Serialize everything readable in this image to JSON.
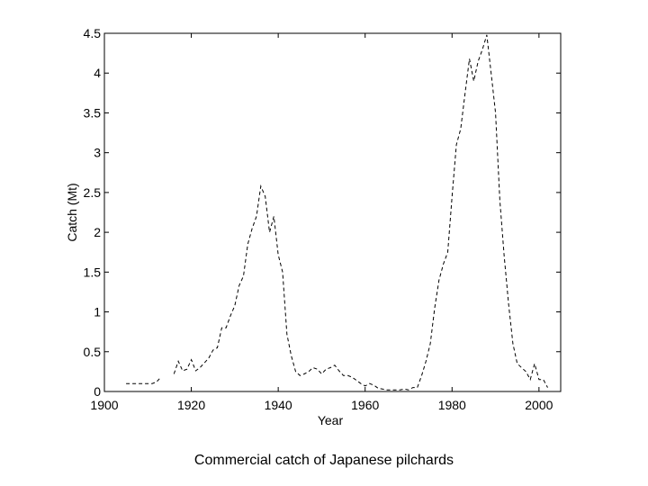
{
  "caption": "Commercial catch of Japanese pilchards",
  "chart_data": {
    "type": "line",
    "title": "",
    "xlabel": "Year",
    "ylabel": "Catch (Mt)",
    "xlim": [
      1900,
      2005
    ],
    "ylim": [
      0,
      4.5
    ],
    "xticks": [
      1900,
      1920,
      1940,
      1960,
      1980,
      2000
    ],
    "yticks": [
      0,
      0.5,
      1,
      1.5,
      2,
      2.5,
      3,
      3.5,
      4,
      4.5
    ],
    "ytick_labels": [
      "0",
      "0.5",
      "1",
      "1.5",
      "2",
      "2.5",
      "3",
      "3.5",
      "4",
      "4.5"
    ],
    "grid": false,
    "line_style": "dashed",
    "line_color": "#000000",
    "series": [
      {
        "name": "",
        "x": [
          1905,
          1906,
          1907,
          1908,
          1909,
          1910,
          1911,
          1912,
          1913,
          1914,
          1915,
          1916,
          1917,
          1918,
          1919,
          1920,
          1921,
          1922,
          1923,
          1924,
          1925,
          1926,
          1927,
          1928,
          1929,
          1930,
          1931,
          1932,
          1933,
          1934,
          1935,
          1936,
          1937,
          1938,
          1939,
          1940,
          1941,
          1942,
          1943,
          1944,
          1945,
          1946,
          1947,
          1948,
          1949,
          1950,
          1951,
          1952,
          1953,
          1954,
          1955,
          1956,
          1957,
          1958,
          1959,
          1960,
          1961,
          1962,
          1963,
          1964,
          1965,
          1966,
          1967,
          1968,
          1969,
          1970,
          1971,
          1972,
          1973,
          1974,
          1975,
          1976,
          1977,
          1978,
          1979,
          1980,
          1981,
          1982,
          1983,
          1984,
          1985,
          1986,
          1987,
          1988,
          1989,
          1990,
          1991,
          1992,
          1993,
          1994,
          1995,
          1996,
          1997,
          1998,
          1999,
          2000,
          2001,
          2002
        ],
        "y": [
          0.1,
          0.1,
          0.1,
          0.1,
          0.1,
          0.1,
          0.1,
          0.12,
          0.18,
          null,
          null,
          0.22,
          0.38,
          0.26,
          0.28,
          0.4,
          0.26,
          0.3,
          0.36,
          0.42,
          0.52,
          0.55,
          0.8,
          0.8,
          0.95,
          1.08,
          1.33,
          1.45,
          1.85,
          2.05,
          2.2,
          2.58,
          2.45,
          2.0,
          2.2,
          1.72,
          1.5,
          0.72,
          0.45,
          0.25,
          0.2,
          0.22,
          0.25,
          0.3,
          0.28,
          0.22,
          0.28,
          0.3,
          0.33,
          0.26,
          0.2,
          0.2,
          0.18,
          0.14,
          0.1,
          0.07,
          0.1,
          0.08,
          0.04,
          0.03,
          0.02,
          0.02,
          0.02,
          0.02,
          0.03,
          0.02,
          0.05,
          0.05,
          0.2,
          0.38,
          0.6,
          1.05,
          1.4,
          1.6,
          1.75,
          2.45,
          3.1,
          3.3,
          3.75,
          4.18,
          3.9,
          4.15,
          4.3,
          4.48,
          4.0,
          3.5,
          2.4,
          1.7,
          1.1,
          0.6,
          0.35,
          0.3,
          0.25,
          0.15,
          0.35,
          0.15,
          0.15,
          0.05
        ]
      }
    ]
  }
}
